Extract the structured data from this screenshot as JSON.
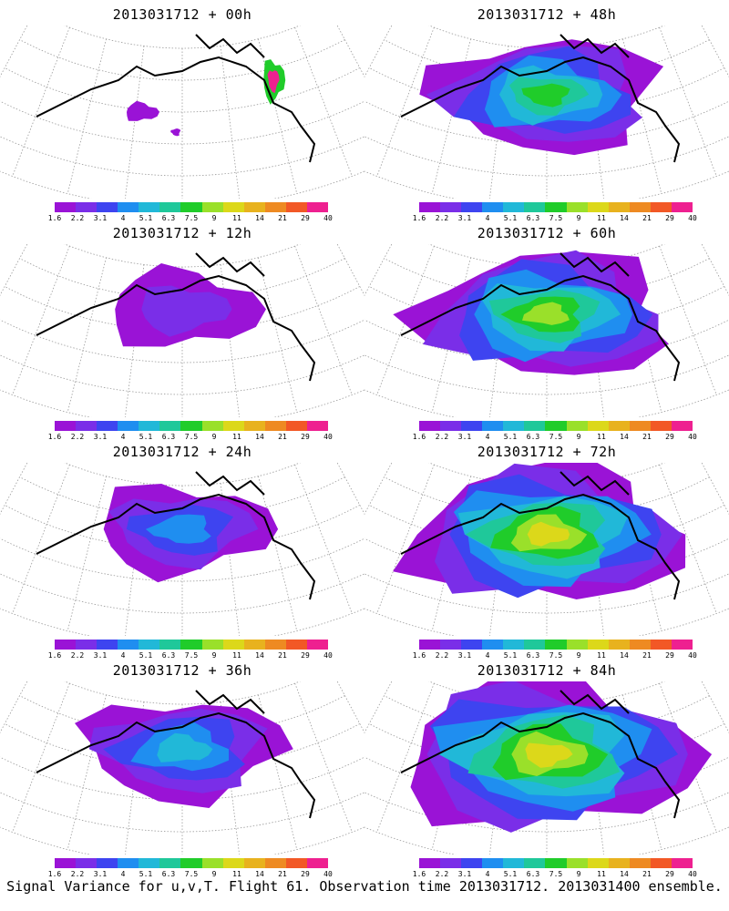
{
  "caption": "Signal Variance for u,v,T. Flight 61. Observation time 2013031712. 2013031400 ensemble.",
  "colorbar": {
    "colors": [
      "#9a13d6",
      "#7a2ee8",
      "#3e44f0",
      "#1f8ef0",
      "#21b8d8",
      "#1fc89a",
      "#20cc2a",
      "#9ae02a",
      "#dcd81a",
      "#e8b21e",
      "#ee8a22",
      "#f25826",
      "#ee2090"
    ],
    "tick_labels": [
      "1.6",
      "2.2",
      "3.1",
      "4",
      "5.1",
      "6.3",
      "7.5",
      "9",
      "11",
      "14",
      "21",
      "29",
      "40"
    ]
  },
  "chart_data": [
    {
      "type": "heatmap",
      "title": "2013031712 + 00h",
      "lead_hours": 0,
      "colorbar_levels": [
        1.6,
        2.2,
        3.1,
        4,
        5.1,
        6.3,
        7.5,
        9,
        11,
        14,
        21,
        29,
        40
      ],
      "max_level_shown": 40
    },
    {
      "type": "heatmap",
      "title": "2013031712 + 12h",
      "lead_hours": 12,
      "colorbar_levels": [
        1.6,
        2.2,
        3.1,
        4,
        5.1,
        6.3,
        7.5,
        9,
        11,
        14,
        21,
        29,
        40
      ],
      "max_level_shown": 2.2
    },
    {
      "type": "heatmap",
      "title": "2013031712 + 24h",
      "lead_hours": 24,
      "colorbar_levels": [
        1.6,
        2.2,
        3.1,
        4,
        5.1,
        6.3,
        7.5,
        9,
        11,
        14,
        21,
        29,
        40
      ],
      "max_level_shown": 4
    },
    {
      "type": "heatmap",
      "title": "2013031712 + 36h",
      "lead_hours": 36,
      "colorbar_levels": [
        1.6,
        2.2,
        3.1,
        4,
        5.1,
        6.3,
        7.5,
        9,
        11,
        14,
        21,
        29,
        40
      ],
      "max_level_shown": 5.1
    },
    {
      "type": "heatmap",
      "title": "2013031712 + 48h",
      "lead_hours": 48,
      "colorbar_levels": [
        1.6,
        2.2,
        3.1,
        4,
        5.1,
        6.3,
        7.5,
        9,
        11,
        14,
        21,
        29,
        40
      ],
      "max_level_shown": 7.5
    },
    {
      "type": "heatmap",
      "title": "2013031712 + 60h",
      "lead_hours": 60,
      "colorbar_levels": [
        1.6,
        2.2,
        3.1,
        4,
        5.1,
        6.3,
        7.5,
        9,
        11,
        14,
        21,
        29,
        40
      ],
      "max_level_shown": 9
    },
    {
      "type": "heatmap",
      "title": "2013031712 + 72h",
      "lead_hours": 72,
      "colorbar_levels": [
        1.6,
        2.2,
        3.1,
        4,
        5.1,
        6.3,
        7.5,
        9,
        11,
        14,
        21,
        29,
        40
      ],
      "max_level_shown": 11
    },
    {
      "type": "heatmap",
      "title": "2013031712 + 84h",
      "lead_hours": 84,
      "colorbar_levels": [
        1.6,
        2.2,
        3.1,
        4,
        5.1,
        6.3,
        7.5,
        9,
        11,
        14,
        21,
        29,
        40
      ],
      "max_level_shown": 11
    }
  ]
}
